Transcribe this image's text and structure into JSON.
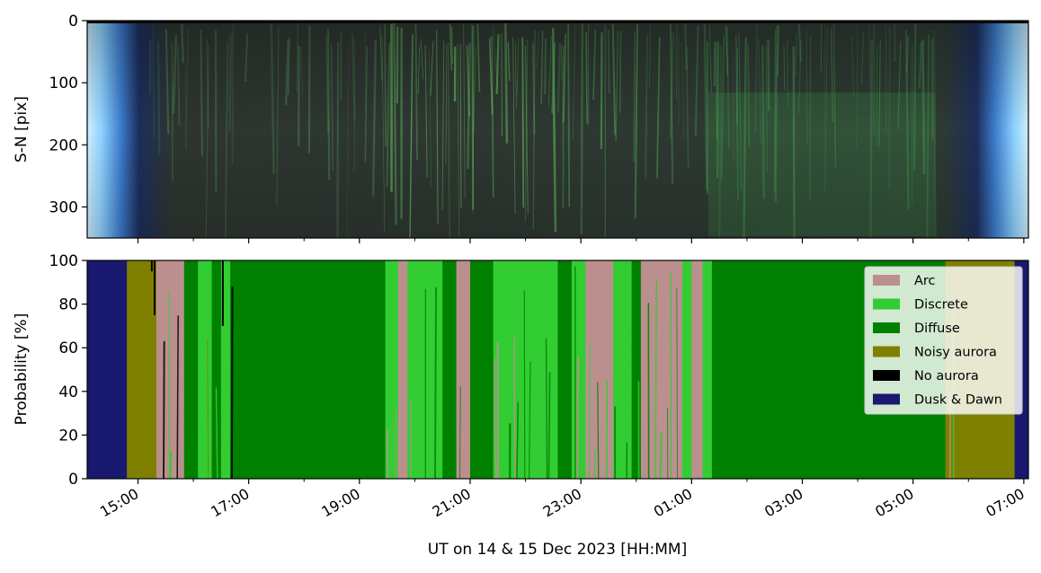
{
  "chart_data": [
    {
      "type": "heatmap",
      "ylabel": "S-N [pix]",
      "yticks": [
        "0",
        "100",
        "200",
        "300"
      ],
      "ylim": [
        350,
        0
      ],
      "grid": false,
      "colors": {
        "twilight_light": "#8fd3ff",
        "twilight_dark": "#1c3a78",
        "night": "#2e3a33",
        "aurora": "#4fbf4f"
      }
    },
    {
      "type": "area",
      "stacked": true,
      "ylabel": "Probability [%]",
      "xlabel": "UT on 14 & 15 Dec 2023 [HH:MM]",
      "ylim": [
        0,
        100
      ],
      "yticks": [
        "0",
        "20",
        "40",
        "60",
        "80",
        "100"
      ],
      "xlim": [
        "14:05",
        "07:05"
      ],
      "xtick_labels": [
        "15:00",
        "17:00",
        "19:00",
        "21:00",
        "23:00",
        "01:00",
        "03:00",
        "05:00",
        "07:00"
      ],
      "grid": false,
      "legend_position": "top-right",
      "series": [
        {
          "name": "Arc",
          "color": "#bc8f8f"
        },
        {
          "name": "Discrete",
          "color": "#32cd32"
        },
        {
          "name": "Diffuse",
          "color": "#008000"
        },
        {
          "name": "Noisy aurora",
          "color": "#808000"
        },
        {
          "name": "No aurora",
          "color": "#000000"
        },
        {
          "name": "Dusk & Dawn",
          "color": "#191970"
        }
      ],
      "segments": [
        {
          "start": "14:05",
          "end": "14:48",
          "class": "Dusk & Dawn"
        },
        {
          "start": "14:48",
          "end": "15:20",
          "class": "Noisy aurora"
        },
        {
          "start": "15:20",
          "end": "15:50",
          "class": "Arc"
        },
        {
          "start": "15:50",
          "end": "16:05",
          "class": "Diffuse"
        },
        {
          "start": "16:05",
          "end": "16:20",
          "class": "Discrete"
        },
        {
          "start": "16:20",
          "end": "16:30",
          "class": "Diffuse"
        },
        {
          "start": "16:30",
          "end": "16:40",
          "class": "Discrete"
        },
        {
          "start": "16:40",
          "end": "19:28",
          "class": "Diffuse"
        },
        {
          "start": "19:28",
          "end": "19:42",
          "class": "Discrete"
        },
        {
          "start": "19:42",
          "end": "19:52",
          "class": "Arc"
        },
        {
          "start": "19:52",
          "end": "20:30",
          "class": "Discrete"
        },
        {
          "start": "20:30",
          "end": "20:45",
          "class": "Diffuse"
        },
        {
          "start": "20:45",
          "end": "21:00",
          "class": "Arc"
        },
        {
          "start": "21:00",
          "end": "21:25",
          "class": "Diffuse"
        },
        {
          "start": "21:25",
          "end": "22:35",
          "class": "Discrete"
        },
        {
          "start": "22:35",
          "end": "22:50",
          "class": "Diffuse"
        },
        {
          "start": "22:50",
          "end": "23:05",
          "class": "Discrete"
        },
        {
          "start": "23:05",
          "end": "23:35",
          "class": "Arc"
        },
        {
          "start": "23:35",
          "end": "23:55",
          "class": "Discrete"
        },
        {
          "start": "23:55",
          "end": "24:05",
          "class": "Diffuse"
        },
        {
          "start": "24:05",
          "end": "24:50",
          "class": "Arc"
        },
        {
          "start": "24:50",
          "end": "25:00",
          "class": "Discrete"
        },
        {
          "start": "25:00",
          "end": "25:12",
          "class": "Arc"
        },
        {
          "start": "25:12",
          "end": "25:22",
          "class": "Discrete"
        },
        {
          "start": "25:22",
          "end": "29:35",
          "class": "Diffuse"
        },
        {
          "start": "29:35",
          "end": "30:50",
          "class": "Noisy aurora"
        },
        {
          "start": "30:50",
          "end": "31:05",
          "class": "Dusk & Dawn"
        }
      ]
    }
  ]
}
